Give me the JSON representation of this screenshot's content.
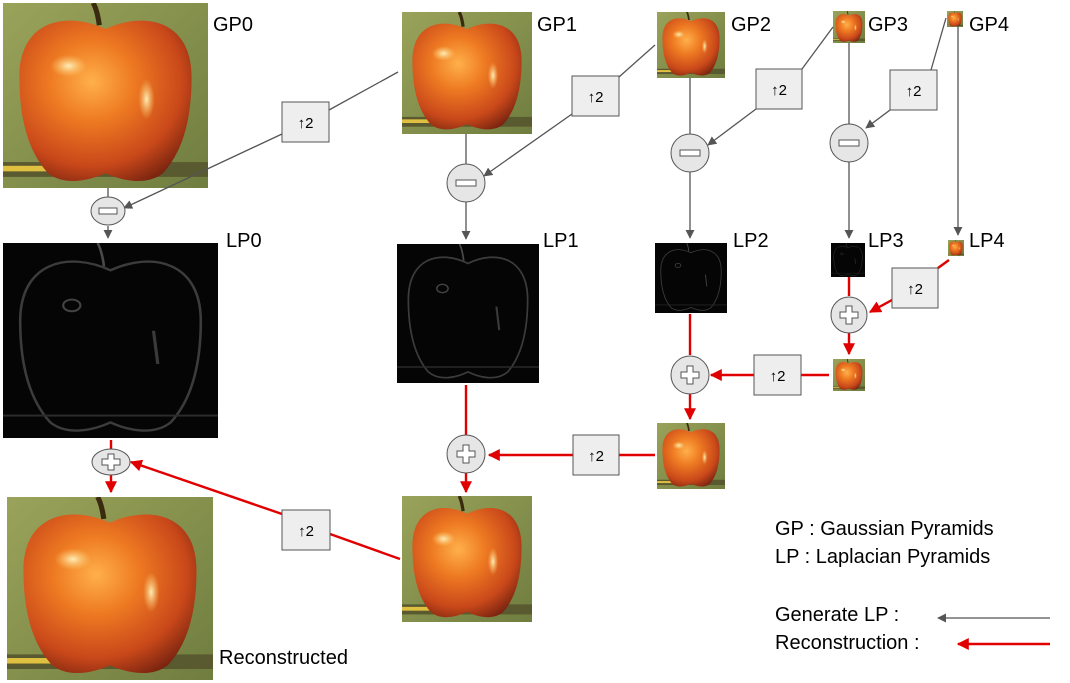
{
  "labels": {
    "gp0": "GP0",
    "gp1": "GP1",
    "gp2": "GP2",
    "gp3": "GP3",
    "gp4": "GP4",
    "lp0": "LP0",
    "lp1": "LP1",
    "lp2": "LP2",
    "lp3": "LP3",
    "lp4": "LP4",
    "reconstructed": "Reconstructed"
  },
  "upsample_label": "↑2",
  "legend": {
    "gp": "GP : Gaussian Pyramids",
    "lp": "LP : Laplacian Pyramids",
    "generate": "Generate LP :",
    "reconstruction": "Reconstruction :"
  },
  "colors": {
    "generate_arrow": "#555555",
    "reconstruction_arrow": "#e00000",
    "apple": "#e8651c",
    "background": "#8f9a52",
    "laplacian": "#050505"
  },
  "icons": {
    "minus": "minus-icon",
    "plus": "plus-icon"
  }
}
